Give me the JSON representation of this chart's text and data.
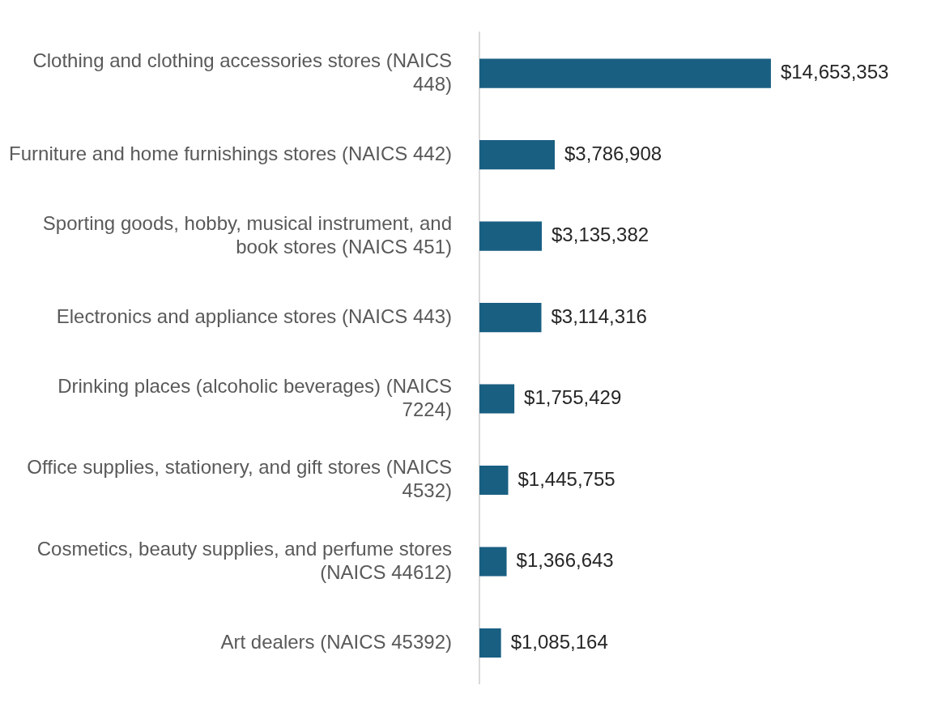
{
  "chart_data": {
    "type": "bar",
    "orientation": "horizontal",
    "categories": [
      "Clothing and clothing accessories stores (NAICS 448)",
      "Furniture and home furnishings stores (NAICS 442)",
      "Sporting goods, hobby, musical instrument, and book stores (NAICS 451)",
      "Electronics and appliance stores (NAICS 443)",
      "Drinking places (alcoholic beverages) (NAICS 7224)",
      "Office supplies, stationery, and gift stores (NAICS 4532)",
      "Cosmetics, beauty supplies, and perfume stores (NAICS 44612)",
      "Art dealers (NAICS 45392)"
    ],
    "values": [
      14653353,
      3786908,
      3135382,
      3114316,
      1755429,
      1445755,
      1366643,
      1085164
    ],
    "value_labels": [
      "$14,653,353",
      "$3,786,908",
      "$3,135,382",
      "$3,114,316",
      "$1,755,429",
      "$1,445,755",
      "$1,366,643",
      "$1,085,164"
    ],
    "color": "#195f82"
  }
}
